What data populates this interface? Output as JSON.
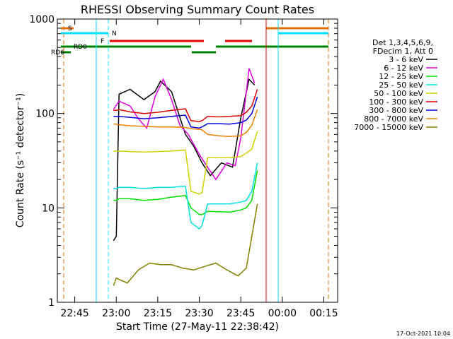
{
  "chart_data": {
    "type": "line",
    "title": "RHESSI Observing Summary Count Rates",
    "xlabel": "Start Time (27-May-11 22:38:42)",
    "ylabel": "Count Rate (s⁻¹ detector⁻¹)",
    "yscale": "log",
    "xlim": [
      "22:38:42",
      "00:20:00"
    ],
    "ylim": [
      1,
      1000
    ],
    "x_ticks": [
      "22:45",
      "23:00",
      "23:15",
      "23:30",
      "23:45",
      "00:00",
      "00:15"
    ],
    "y_ticks": [
      "1",
      "10",
      "100",
      "1000"
    ],
    "timestamp": "17-Oct-2021 10:04",
    "legend": {
      "header": [
        "Det 1,3,4,5,6,9,",
        "FDecim 1, Att 0"
      ],
      "placement": "right"
    },
    "flags": [
      {
        "label": "S",
        "color": "#e07000"
      },
      {
        "label": "N",
        "color": "#00e0ff"
      },
      {
        "label": "F",
        "color": "#e00000"
      },
      {
        "label": "RD0",
        "color": "#008000"
      },
      {
        "label": "RD6",
        "color": "#008000"
      }
    ],
    "series": [
      {
        "name": "3 - 6 keV",
        "color": "#000000",
        "x": [
          "22:59",
          "23:00",
          "23:01",
          "23:05",
          "23:10",
          "23:14",
          "23:16",
          "23:20",
          "23:25",
          "23:28",
          "23:31",
          "23:34",
          "23:38",
          "23:42",
          "23:45",
          "23:48",
          "23:50"
        ],
        "y": [
          4.5,
          5,
          160,
          180,
          140,
          170,
          220,
          170,
          60,
          45,
          30,
          22,
          30,
          27,
          90,
          230,
          200
        ]
      },
      {
        "name": "6 - 12 keV",
        "color": "#e000e0",
        "x": [
          "22:59",
          "23:01",
          "23:05",
          "23:08",
          "23:11",
          "23:14",
          "23:17",
          "23:20",
          "23:23",
          "23:26",
          "23:30",
          "23:33",
          "23:36",
          "23:40",
          "23:43",
          "23:45",
          "23:48",
          "23:50"
        ],
        "y": [
          110,
          135,
          120,
          88,
          70,
          150,
          230,
          140,
          75,
          60,
          37,
          27,
          20,
          30,
          28,
          55,
          300,
          210
        ]
      },
      {
        "name": "12 - 25 keV",
        "color": "#00e000",
        "x": [
          "22:59",
          "23:00",
          "23:01",
          "23:05",
          "23:10",
          "23:15",
          "23:20",
          "23:25",
          "23:27",
          "23:30",
          "23:31",
          "23:33",
          "23:37",
          "23:41",
          "23:45",
          "23:47",
          "23:49",
          "23:51"
        ],
        "y": [
          12,
          12,
          12.5,
          12.5,
          12,
          12.3,
          13,
          13.5,
          10,
          8.5,
          8.5,
          9.2,
          9.1,
          9.0,
          9.5,
          10,
          12,
          25
        ]
      },
      {
        "name": "25 - 50 keV",
        "color": "#00e0e0",
        "x": [
          "22:59",
          "23:00",
          "23:01",
          "23:05",
          "23:10",
          "23:15",
          "23:20",
          "23:25",
          "23:27",
          "23:30",
          "23:31",
          "23:33",
          "23:37",
          "23:41",
          "23:45",
          "23:47",
          "23:49",
          "23:51"
        ],
        "y": [
          16,
          16,
          16.5,
          16.5,
          16,
          16.5,
          16.5,
          17,
          7,
          6,
          6.5,
          11,
          11,
          11,
          11.5,
          12,
          15,
          30
        ]
      },
      {
        "name": "50 - 100 keV",
        "color": "#d0d000",
        "x": [
          "22:59",
          "23:00",
          "23:01",
          "23:05",
          "23:10",
          "23:15",
          "23:20",
          "23:25",
          "23:27",
          "23:30",
          "23:31",
          "23:33",
          "23:37",
          "23:41",
          "23:45",
          "23:47",
          "23:49",
          "23:51"
        ],
        "y": [
          40,
          40,
          40,
          39.5,
          39,
          39.5,
          40,
          41,
          15,
          14,
          14.5,
          34,
          34,
          34,
          35,
          38,
          42,
          65
        ]
      },
      {
        "name": "100 - 300 keV",
        "color": "#e00000",
        "x": [
          "22:59",
          "23:00",
          "23:01",
          "23:05",
          "23:10",
          "23:15",
          "23:20",
          "23:25",
          "23:27",
          "23:30",
          "23:31",
          "23:33",
          "23:37",
          "23:41",
          "23:45",
          "23:47",
          "23:49",
          "23:51"
        ],
        "y": [
          108,
          108,
          110,
          104,
          100,
          103,
          108,
          112,
          84,
          82,
          84,
          93,
          92,
          93,
          95,
          103,
          120,
          180
        ]
      },
      {
        "name": "300 - 800 keV",
        "color": "#0000e0",
        "x": [
          "22:59",
          "23:00",
          "23:01",
          "23:05",
          "23:10",
          "23:15",
          "23:20",
          "23:25",
          "23:27",
          "23:30",
          "23:31",
          "23:33",
          "23:37",
          "23:41",
          "23:45",
          "23:47",
          "23:49",
          "23:51"
        ],
        "y": [
          93,
          93,
          93,
          91,
          88,
          90,
          93,
          96,
          72,
          70,
          72,
          78,
          78,
          77,
          80,
          85,
          100,
          150
        ]
      },
      {
        "name": "800 - 7000 keV",
        "color": "#f08000",
        "x": [
          "22:59",
          "23:00",
          "23:01",
          "23:05",
          "23:10",
          "23:15",
          "23:20",
          "23:25",
          "23:27",
          "23:30",
          "23:31",
          "23:33",
          "23:37",
          "23:41",
          "23:45",
          "23:47",
          "23:49",
          "23:51"
        ],
        "y": [
          77,
          77,
          76,
          74,
          73,
          72,
          72,
          71,
          69,
          68,
          67,
          60,
          58,
          57,
          58,
          63,
          75,
          110
        ]
      },
      {
        "name": "7000 - 15000 keV",
        "color": "#808000",
        "x": [
          "22:59",
          "23:00",
          "23:04",
          "23:08",
          "23:12",
          "23:16",
          "23:20",
          "23:24",
          "23:28",
          "23:32",
          "23:36",
          "23:40",
          "23:44",
          "23:47",
          "23:49",
          "23:51"
        ],
        "y": [
          1.5,
          1.8,
          1.6,
          2.2,
          2.6,
          2.5,
          2.5,
          2.3,
          2.2,
          2.4,
          2.6,
          2.2,
          1.9,
          2.3,
          5,
          11
        ]
      }
    ]
  }
}
